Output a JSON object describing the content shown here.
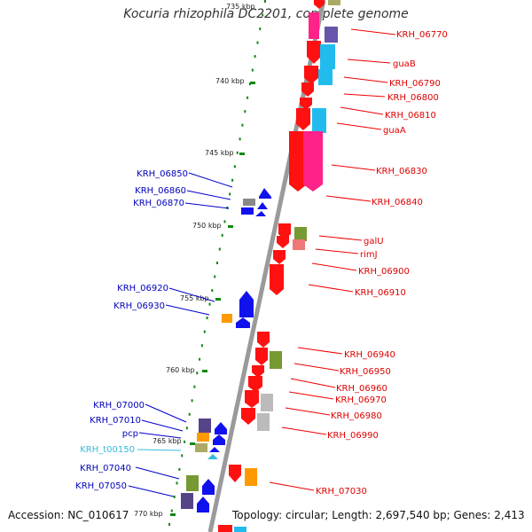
{
  "header": {
    "title": "Kocuria rhizophila DC2201, complete genome"
  },
  "footer": {
    "accession": "Accession: NC_010617",
    "topology": "Topology: circular; Length: 2,697,540 bp; Genes: 2,413"
  },
  "scale_labels": [
    "735 kbp",
    "740 kbp",
    "745 kbp",
    "750 kbp",
    "755 kbp",
    "760 kbp",
    "765 kbp",
    "770 kbp"
  ],
  "colors": {
    "backbone": "#999999",
    "scale_dots": "#118811",
    "forward_label": "#dd0000",
    "reverse_label": "#0000bb",
    "rna_label": "#33bbdd",
    "forward_gene": "#ff1111",
    "reverse_gene": "#1111ee",
    "orange": "#ff9900",
    "cyan": "#22bbee",
    "magenta": "#ff2288",
    "olive": "#779933",
    "purple": "#6655aa",
    "gray": "#bbbbbb"
  },
  "genes_right": [
    "KRH_06770",
    "guaB",
    "KRH_06790",
    "KRH_06800",
    "KRH_06810",
    "guaA",
    "KRH_06830",
    "KRH_06840",
    "galU",
    "rimJ",
    "KRH_06900",
    "KRH_06910",
    "KRH_06940",
    "KRH_06950",
    "KRH_06960",
    "KRH_06970",
    "KRH_06980",
    "KRH_06990",
    "KRH_07030"
  ],
  "genes_left": [
    "KRH_06850",
    "KRH_06860",
    "KRH_06870",
    "KRH_06920",
    "KRH_06930",
    "KRH_07000",
    "KRH_07010",
    "pcp",
    "KRH_t00150",
    "KRH_07040",
    "KRH_07050"
  ]
}
